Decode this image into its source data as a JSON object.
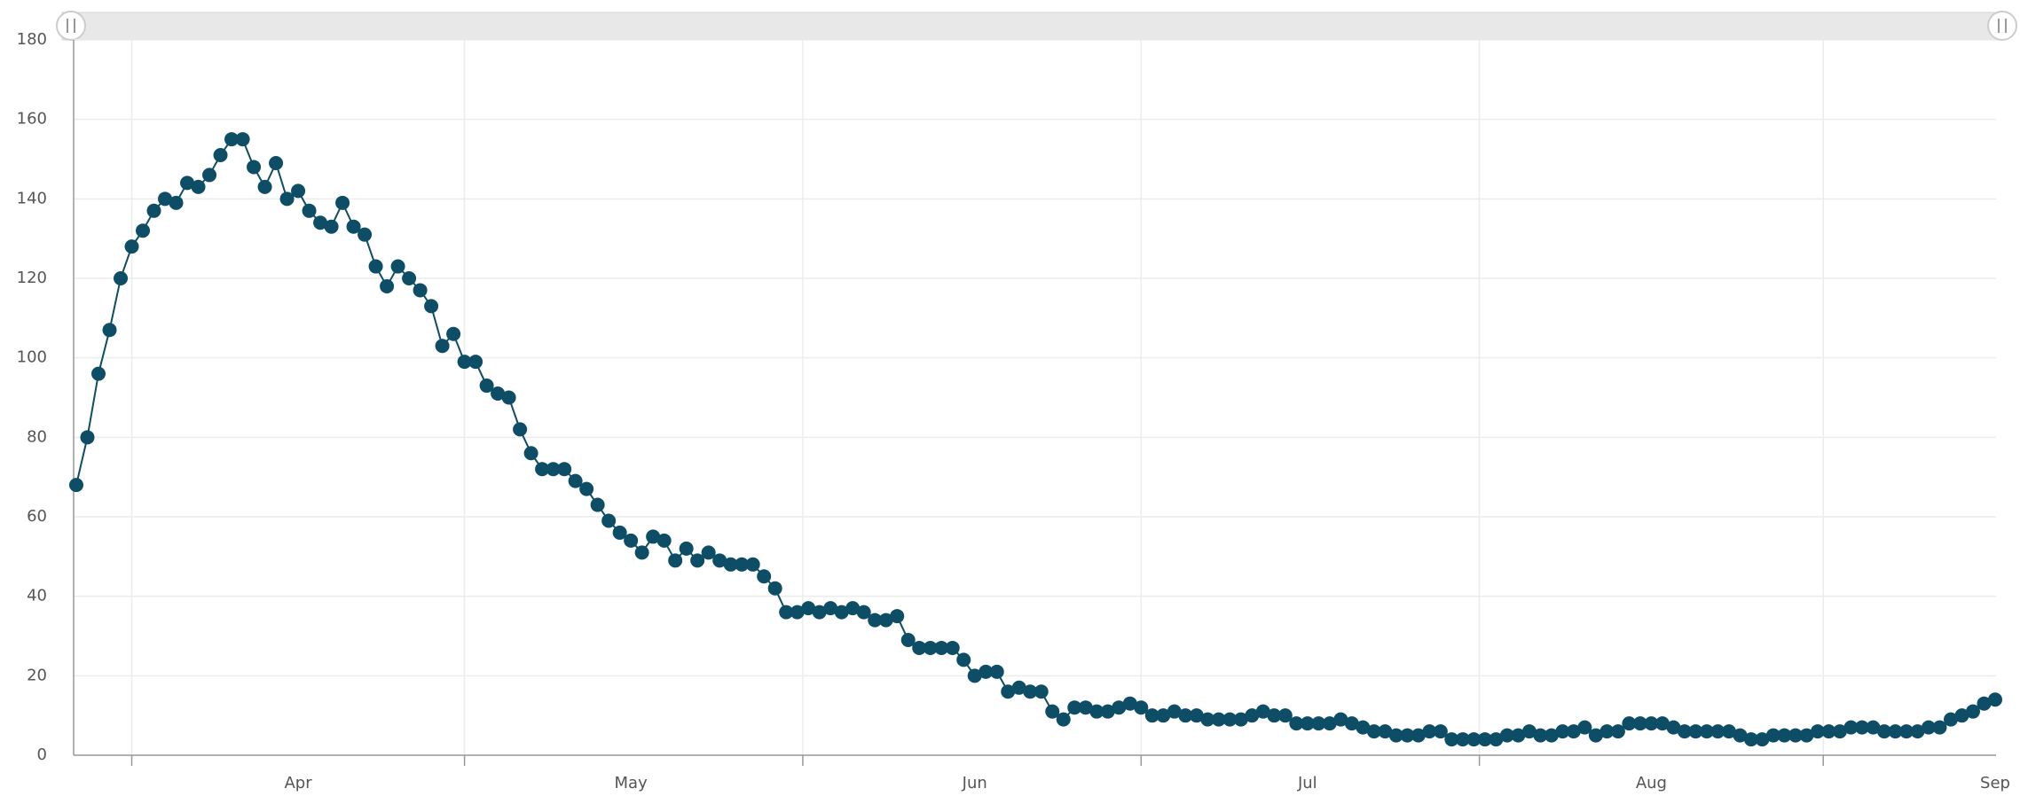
{
  "chart_data": {
    "type": "line",
    "categories": [
      null,
      null,
      null,
      null,
      null,
      null,
      null,
      null,
      null,
      null,
      null,
      null,
      null,
      null,
      null,
      null,
      null,
      null,
      null,
      null,
      "Apr",
      null,
      null,
      null,
      null,
      null,
      null,
      null,
      null,
      null,
      null,
      null,
      null,
      null,
      null,
      null,
      null,
      null,
      null,
      null,
      null,
      null,
      null,
      null,
      null,
      null,
      null,
      null,
      null,
      null,
      "May",
      null,
      null,
      null,
      null,
      null,
      null,
      null,
      null,
      null,
      null,
      null,
      null,
      null,
      null,
      null,
      null,
      null,
      null,
      null,
      null,
      null,
      null,
      null,
      null,
      null,
      null,
      null,
      null,
      null,
      null,
      "Jun",
      null,
      null,
      null,
      null,
      null,
      null,
      null,
      null,
      null,
      null,
      null,
      null,
      null,
      null,
      null,
      null,
      null,
      null,
      null,
      null,
      null,
      null,
      null,
      null,
      null,
      null,
      null,
      null,
      null,
      "Jul",
      null,
      null,
      null,
      null,
      null,
      null,
      null,
      null,
      null,
      null,
      null,
      null,
      null,
      null,
      null,
      null,
      null,
      null,
      null,
      null,
      null,
      null,
      null,
      null,
      null,
      null,
      null,
      null,
      null,
      null,
      "Aug",
      null,
      null,
      null,
      null,
      null,
      null,
      null,
      null,
      null,
      null,
      null,
      null,
      null,
      null,
      null,
      null,
      null,
      null,
      null,
      null,
      null,
      null,
      null,
      null,
      null,
      null,
      null,
      null,
      null,
      null,
      "Sep"
    ],
    "series": [
      {
        "color": "#0d4d66",
        "values": [
          68,
          80,
          96,
          107,
          120,
          128,
          132,
          137,
          140,
          139,
          144,
          143,
          146,
          151,
          155,
          155,
          148,
          143,
          149,
          140,
          142,
          137,
          134,
          133,
          139,
          133,
          131,
          123,
          118,
          123,
          120,
          117,
          113,
          103,
          106,
          99,
          99,
          93,
          91,
          90,
          82,
          76,
          72,
          72,
          72,
          69,
          67,
          63,
          59,
          56,
          54,
          51,
          55,
          54,
          49,
          52,
          49,
          51,
          49,
          48,
          48,
          48,
          45,
          42,
          36,
          36,
          37,
          36,
          37,
          36,
          37,
          36,
          34,
          34,
          35,
          29,
          27,
          27,
          27,
          27,
          24,
          20,
          21,
          21,
          16,
          17,
          16,
          16,
          11,
          9,
          12,
          12,
          11,
          11,
          12,
          13,
          12,
          10,
          10,
          11,
          10,
          10,
          9,
          9,
          9,
          9,
          10,
          11,
          10,
          10,
          8,
          8,
          8,
          8,
          9,
          8,
          7,
          6,
          6,
          5,
          5,
          5,
          6,
          6,
          4,
          4,
          4,
          4,
          4,
          5,
          5,
          6,
          5,
          5,
          6,
          6,
          7,
          5,
          6,
          6,
          8,
          8,
          8,
          8,
          7,
          6,
          6,
          6,
          6,
          6,
          5,
          4,
          4,
          5,
          5,
          5,
          5,
          6,
          6,
          6,
          7,
          7,
          7,
          6,
          6,
          6,
          6,
          7,
          7,
          9,
          10,
          11,
          13,
          14
        ]
      }
    ],
    "ylim": [
      0,
      180
    ],
    "yticks": [
      0,
      20,
      40,
      60,
      80,
      100,
      120,
      140,
      160,
      180
    ],
    "grid": true
  }
}
